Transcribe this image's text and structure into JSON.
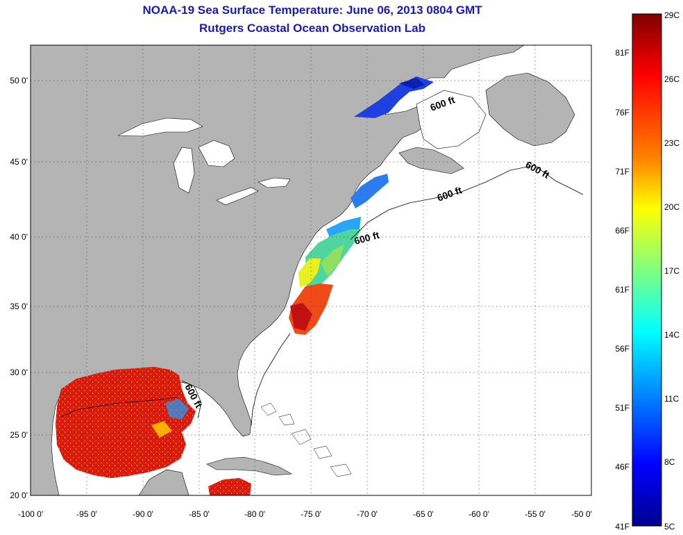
{
  "header": {
    "title": "NOAA-19 Sea Surface Temperature:  June 06, 2013 0804 GMT",
    "subtitle": "Rutgers Coastal Ocean Observation Lab"
  },
  "axes": {
    "lat_labels": [
      "50 0'",
      "45 0'",
      "40 0'",
      "35 0'",
      "30 0'",
      "25 0'",
      "20 0'"
    ],
    "lon_labels": [
      "-100 0'",
      "-95 0'",
      "-90 0'",
      "-85 0'",
      "-80 0'",
      "-75 0'",
      "-70 0'",
      "-65 0'",
      "-60 0'",
      "-55 0'",
      "-50 0'"
    ]
  },
  "isobath_labels": [
    "600 ft",
    "600 ft",
    "600 ft",
    "600 ft",
    "600 ft"
  ],
  "colorbar": {
    "celsius": [
      "29C",
      "26C",
      "23C",
      "20C",
      "17C",
      "14C",
      "11C",
      "8C",
      "5C"
    ],
    "fahrenheit": [
      "81F",
      "76F",
      "71F",
      "66F",
      "61F",
      "56F",
      "51F",
      "46F",
      "41F"
    ],
    "colors": [
      "#7f0000",
      "#ff0000",
      "#ff8000",
      "#ffff00",
      "#80ff80",
      "#00ffff",
      "#0080ff",
      "#0000ff",
      "#00008f"
    ]
  },
  "colors": {
    "land": "#b4b4b4",
    "ocean": "#ffffff",
    "title": "#1a1ab4"
  }
}
